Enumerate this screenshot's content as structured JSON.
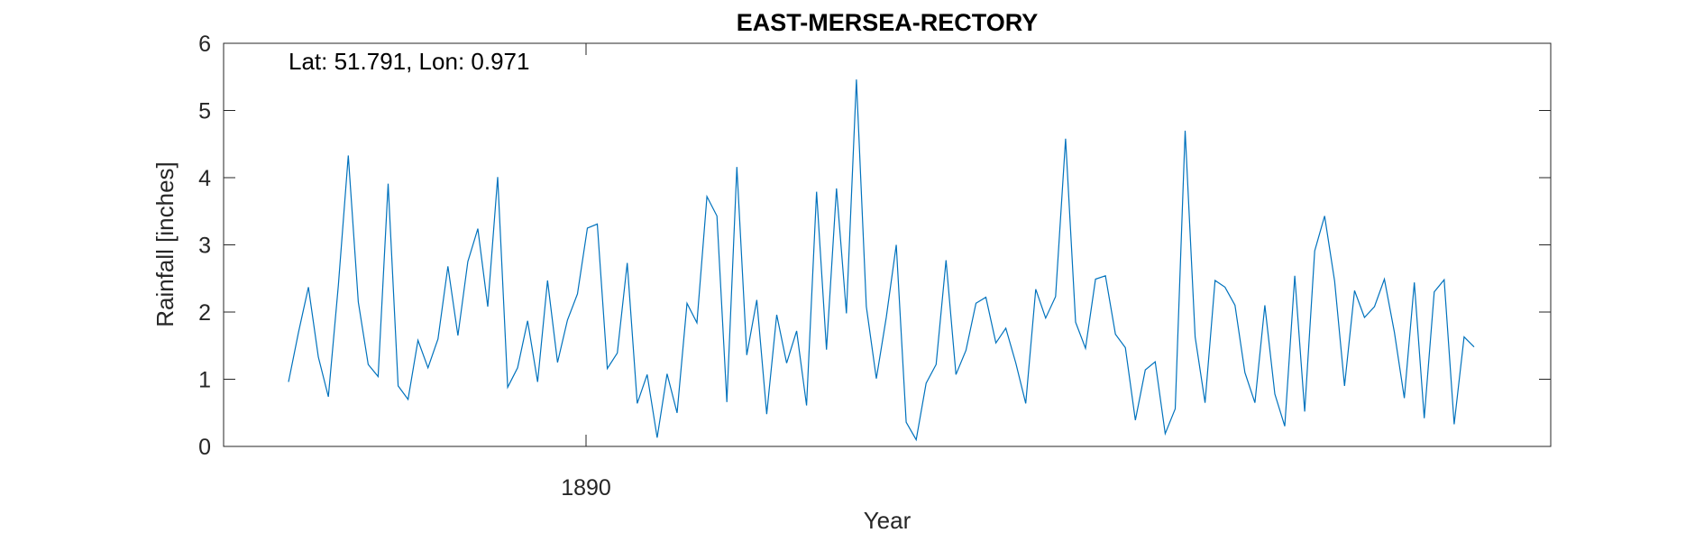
{
  "chart_data": {
    "type": "line",
    "title": "EAST-MERSEA-RECTORY",
    "annotation": "Lat: 51.791, Lon: 0.971",
    "xlabel": "Year",
    "ylabel": "Rainfall [inches]",
    "xticks": [
      1890
    ],
    "yticks": [
      0,
      1,
      2,
      3,
      4,
      5,
      6
    ],
    "ylim": [
      0,
      6
    ],
    "grid": false,
    "line_color": "#0072BD",
    "series": [
      {
        "values": [
          0.96,
          1.7,
          2.37,
          1.33,
          0.74,
          2.4,
          4.33,
          2.15,
          1.22,
          1.04,
          3.91,
          0.9,
          0.7,
          1.58,
          1.17,
          1.6,
          2.68,
          1.65,
          2.75,
          3.24,
          2.08,
          4.01,
          0.88,
          1.17,
          1.87,
          0.96,
          2.47,
          1.25,
          1.88,
          2.27,
          3.25,
          3.31,
          1.16,
          1.39,
          2.73,
          0.64,
          1.07,
          0.13,
          1.08,
          0.5,
          2.13,
          1.84,
          3.72,
          3.43,
          0.66,
          4.16,
          1.36,
          2.18,
          0.48,
          1.96,
          1.24,
          1.72,
          0.61,
          3.79,
          1.44,
          3.84,
          1.98,
          5.46,
          2.08,
          1.01,
          1.92,
          3.0,
          0.36,
          0.1,
          0.94,
          1.22,
          2.77,
          1.07,
          1.43,
          2.13,
          2.22,
          1.54,
          1.76,
          1.24,
          0.64,
          2.34,
          1.91,
          2.23,
          4.58,
          1.85,
          1.46,
          2.49,
          2.54,
          1.67,
          1.47,
          0.39,
          1.14,
          1.26,
          0.19,
          0.56,
          4.7,
          1.63,
          0.65,
          2.47,
          2.37,
          2.1,
          1.1,
          0.65,
          2.1,
          0.78,
          0.3,
          2.54,
          0.52,
          2.91,
          3.43,
          2.46,
          0.9,
          2.32,
          1.92,
          2.08,
          2.49,
          1.7,
          0.72,
          2.44,
          0.42,
          2.3,
          2.48,
          0.33,
          1.63,
          1.48
        ]
      }
    ]
  }
}
